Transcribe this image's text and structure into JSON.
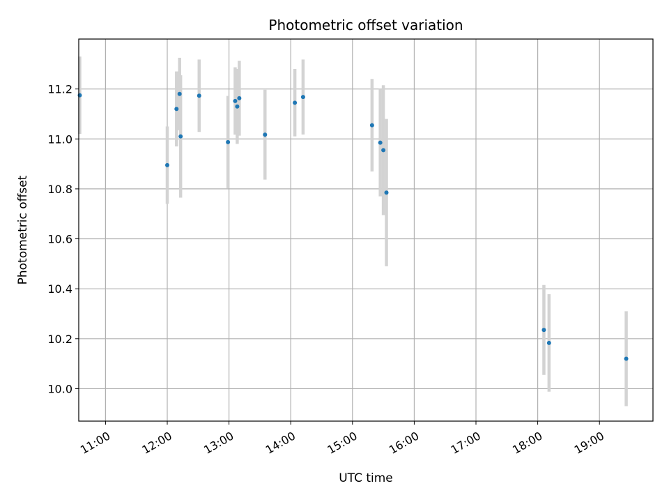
{
  "chart_data": {
    "type": "scatter",
    "title": "Photometric offset variation",
    "xlabel": "UTC time",
    "ylabel": "Photometric offset",
    "xlim": [
      "10:34",
      "19:52"
    ],
    "ylim": [
      9.87,
      11.4
    ],
    "x_ticks": [
      "11:00",
      "12:00",
      "13:00",
      "14:00",
      "15:00",
      "16:00",
      "17:00",
      "18:00",
      "19:00"
    ],
    "y_ticks": [
      "10.0",
      "10.2",
      "10.4",
      "10.6",
      "10.8",
      "11.0",
      "11.2"
    ],
    "grid": true,
    "series": [
      {
        "error_bars": true,
        "points": [
          {
            "x": "10:35",
            "y": 11.175,
            "err": 0.155
          },
          {
            "x": "12:00",
            "y": 10.895,
            "err": 0.155
          },
          {
            "x": "12:09",
            "y": 11.12,
            "err": 0.15
          },
          {
            "x": "12:12",
            "y": 11.18,
            "err": 0.145
          },
          {
            "x": "12:13",
            "y": 11.01,
            "err": 0.245
          },
          {
            "x": "12:31",
            "y": 11.173,
            "err": 0.145
          },
          {
            "x": "12:59",
            "y": 10.987,
            "err": 0.185
          },
          {
            "x": "13:06",
            "y": 11.152,
            "err": 0.135
          },
          {
            "x": "13:08",
            "y": 11.13,
            "err": 0.15
          },
          {
            "x": "13:10",
            "y": 11.163,
            "err": 0.15
          },
          {
            "x": "13:35",
            "y": 11.017,
            "err": 0.18
          },
          {
            "x": "14:04",
            "y": 11.145,
            "err": 0.135
          },
          {
            "x": "14:12",
            "y": 11.168,
            "err": 0.15
          },
          {
            "x": "15:19",
            "y": 11.055,
            "err": 0.185
          },
          {
            "x": "15:27",
            "y": 10.985,
            "err": 0.215
          },
          {
            "x": "15:30",
            "y": 10.955,
            "err": 0.26
          },
          {
            "x": "15:33",
            "y": 10.785,
            "err": 0.295
          },
          {
            "x": "18:06",
            "y": 10.235,
            "err": 0.18
          },
          {
            "x": "18:11",
            "y": 10.183,
            "err": 0.195
          },
          {
            "x": "19:26",
            "y": 10.12,
            "err": 0.19
          }
        ]
      }
    ],
    "colors": {
      "marker": "#1f77b4",
      "errorbar": "#d3d3d3",
      "grid": "#b0b0b0"
    }
  }
}
